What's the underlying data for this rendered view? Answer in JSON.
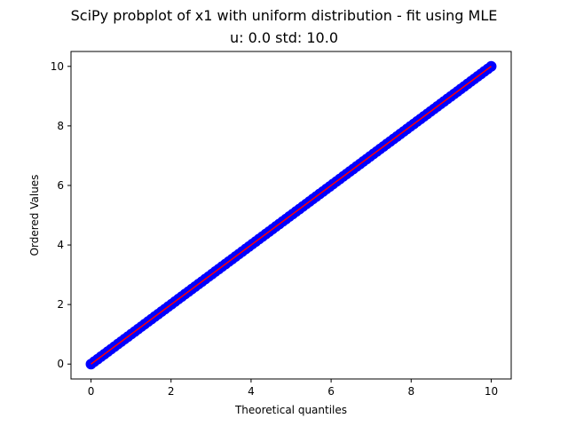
{
  "chart_data": {
    "type": "scatter",
    "title": "SciPy probplot of x1 with uniform distribution - fit using MLE",
    "subtitle": "u: 0.0 std: 10.0",
    "xlabel": "Theoretical quantiles",
    "ylabel": "Ordered Values",
    "xlim": [
      -0.5,
      10.5
    ],
    "ylim": [
      -0.5,
      10.5
    ],
    "xticks": [
      0,
      2,
      4,
      6,
      8,
      10
    ],
    "yticks": [
      0,
      2,
      4,
      6,
      8,
      10
    ],
    "grid": false,
    "colors": {
      "points": "#0000ff",
      "fit_line": "#ff0000"
    },
    "series": [
      {
        "kind": "points",
        "x_range": [
          0,
          10
        ],
        "y_range": [
          0,
          10
        ]
      },
      {
        "kind": "line",
        "x": [
          0,
          10
        ],
        "y": [
          0,
          10
        ]
      }
    ]
  }
}
